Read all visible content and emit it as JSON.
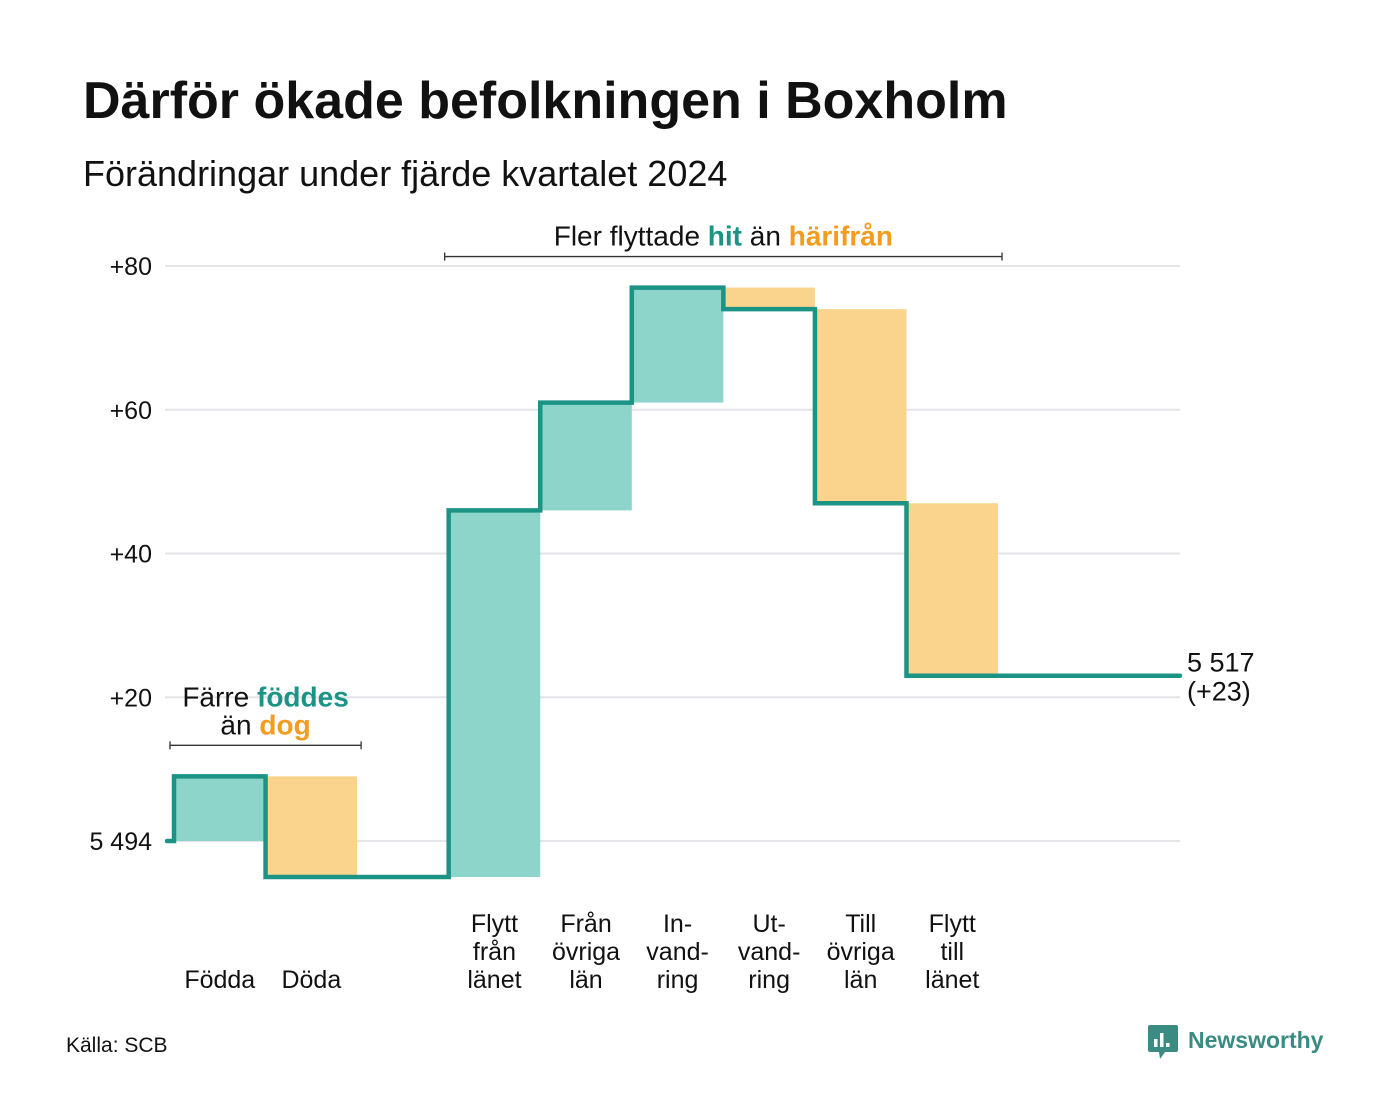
{
  "title": "Därför ökade befolkningen i Boxholm",
  "subtitle": "Förändringar under fjärde kvartalet 2024",
  "source": "Källa: SCB",
  "brand": {
    "name": "Newsworthy",
    "icon": "bar-chart-bubble-icon"
  },
  "colors": {
    "text": "#111111",
    "increase_line": "#1b9485",
    "increase_fill": "#8dd4ca",
    "decrease_fill": "#fad48c",
    "gridline": "#e4e4e9",
    "bracket": "#333333",
    "brand": "#3a8c82"
  },
  "chart_data": {
    "type": "bar",
    "waterfall": true,
    "start_value": 5494,
    "end_value": 5517,
    "ylim": [
      0,
      80
    ],
    "grid": true,
    "yticks": [
      {
        "value": 0,
        "label": "5 494"
      },
      {
        "value": 20,
        "label": "+20"
      },
      {
        "value": 40,
        "label": "+40"
      },
      {
        "value": 60,
        "label": "+60"
      },
      {
        "value": 80,
        "label": "+80"
      }
    ],
    "end_labels": [
      "5 517",
      "(+23)"
    ],
    "groups": [
      {
        "annotation": [
          [
            {
              "text": "Färre"
            },
            {
              "text": "föddes",
              "color": "#1b9485",
              "bold": true
            }
          ],
          [
            {
              "text": "än"
            },
            {
              "text": "dog",
              "color": "#f39c1f",
              "bold": true
            }
          ]
        ],
        "categories": [
          {
            "label": [
              "Födda"
            ],
            "value": 9
          },
          {
            "label": [
              "Döda"
            ],
            "value": -14
          }
        ]
      },
      {
        "annotation": [
          [
            {
              "text": "Fler flyttade"
            },
            {
              "text": "hit",
              "color": "#1b9485",
              "bold": true
            },
            {
              "text": "än"
            },
            {
              "text": "härifrån",
              "color": "#f39c1f",
              "bold": true
            }
          ]
        ],
        "categories": [
          {
            "label": [
              "Flytt",
              "från",
              "länet"
            ],
            "value": 51
          },
          {
            "label": [
              "Från",
              "övriga",
              "län"
            ],
            "value": 15
          },
          {
            "label": [
              "In-",
              "vand-",
              "ring"
            ],
            "value": 16
          },
          {
            "label": [
              "Ut-",
              "vand-",
              "ring"
            ],
            "value": -3
          },
          {
            "label": [
              "Till",
              "övriga",
              "län"
            ],
            "value": -27
          },
          {
            "label": [
              "Flytt",
              "till",
              "länet"
            ],
            "value": -24
          }
        ]
      }
    ]
  }
}
